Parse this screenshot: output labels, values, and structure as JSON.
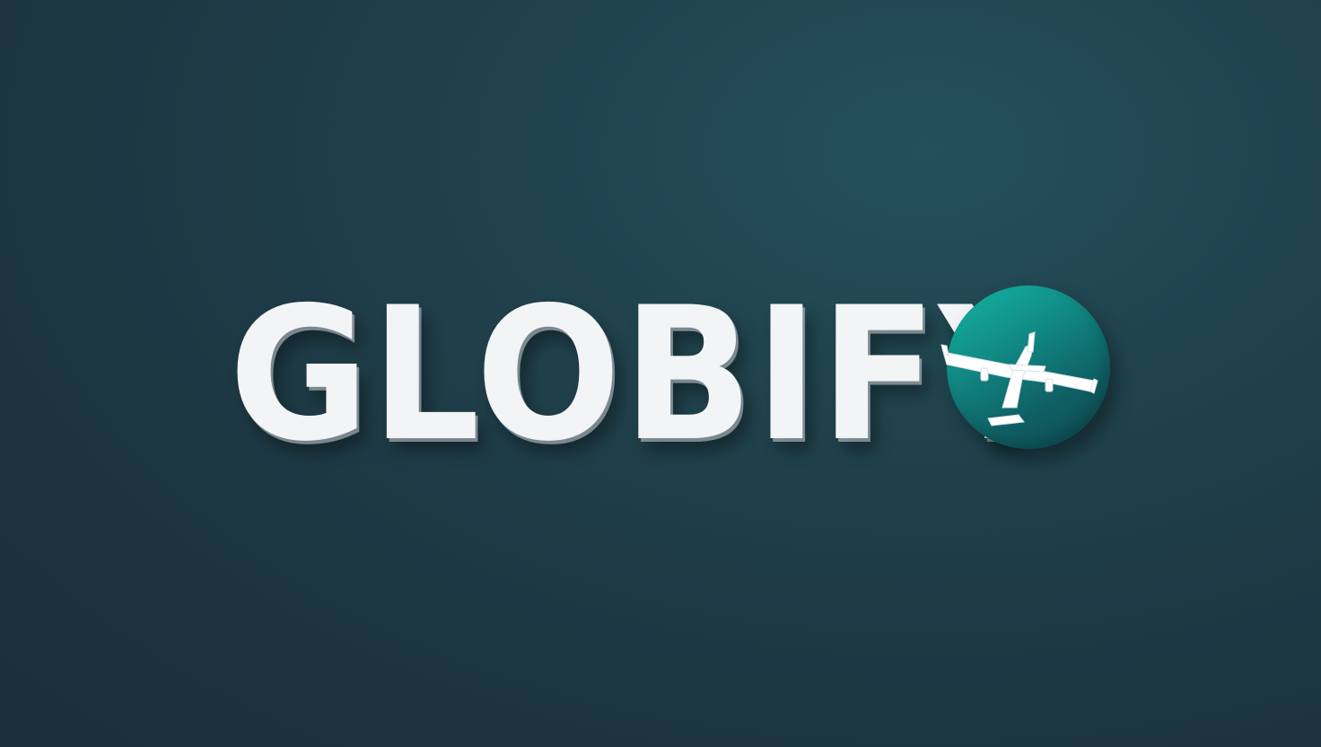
{
  "brand": {
    "name": "GLOBIFY"
  },
  "colors": {
    "background": "#1e3a46",
    "wordmark": "#f2f4f5",
    "globe_light": "#15b7a4",
    "globe_dark": "#0e4a52",
    "plane": "#ffffff"
  },
  "icons": {
    "emblem": "globe-icon",
    "plane": "airplane-icon"
  }
}
